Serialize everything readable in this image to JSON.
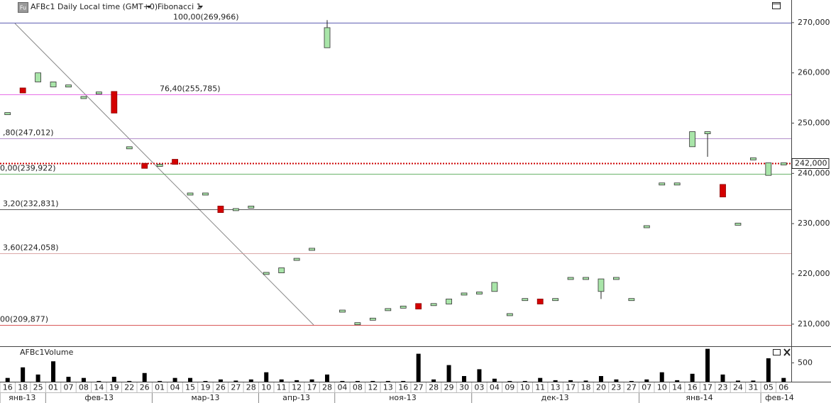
{
  "chart_data": {
    "type": "candlestick",
    "title": "AFBc1 Daily Local time (GMT+0)",
    "indicator": "Fibonacci 1",
    "icon": "Fu",
    "months": [
      {
        "name": "янв-13",
        "days": [
          "16",
          "18",
          "25"
        ]
      },
      {
        "name": "фев-13",
        "days": [
          "01",
          "07",
          "08",
          "14",
          "19",
          "22",
          "26"
        ]
      },
      {
        "name": "мар-13",
        "days": [
          "01",
          "04",
          "15",
          "19",
          "26",
          "27",
          "28"
        ]
      },
      {
        "name": "апр-13",
        "days": [
          "10",
          "11",
          "12",
          "17",
          "28"
        ]
      },
      {
        "name": "ноя-13",
        "days": [
          "04",
          "08",
          "12",
          "13",
          "16",
          "27",
          "28",
          "29",
          "30"
        ]
      },
      {
        "name": "дек-13",
        "days": [
          "03",
          "04",
          "09",
          "10",
          "11",
          "13",
          "17",
          "18",
          "20",
          "23",
          "27"
        ]
      },
      {
        "name": "янв-14",
        "days": [
          "07",
          "10",
          "14",
          "16",
          "17",
          "23",
          "24",
          "31"
        ]
      },
      {
        "name": "фев-14",
        "days": [
          "05",
          "06"
        ]
      }
    ],
    "open": [
      251.8,
      257.0,
      258.2,
      257.2,
      257.3,
      255.1,
      256.0,
      256.3,
      245.1,
      242.0,
      241.6,
      242.8,
      235.9,
      235.9,
      233.5,
      232.8,
      233.3,
      220.1,
      220.2,
      222.9,
      224.9,
      265.0,
      212.6,
      210.1,
      211.0,
      212.9,
      213.4,
      214.1,
      213.9,
      214.0,
      215.8,
      216.1,
      216.5,
      211.9,
      214.9,
      215.0,
      214.9,
      219.1,
      219.1,
      216.5,
      219.1,
      214.9,
      229.4,
      237.9,
      237.9,
      245.3,
      248.0,
      237.8,
      229.9,
      242.9,
      239.6,
      241.9
    ],
    "high": [
      252.1,
      257.0,
      260.0,
      258.2,
      257.6,
      255.3,
      256.2,
      256.3,
      245.3,
      242.0,
      241.8,
      242.8,
      236.1,
      236.1,
      233.5,
      233.0,
      233.5,
      220.3,
      221.2,
      223.1,
      225.1,
      270.5,
      212.8,
      210.3,
      211.2,
      213.1,
      213.6,
      214.1,
      214.1,
      215.0,
      216.2,
      216.4,
      218.3,
      212.1,
      215.1,
      215.0,
      215.1,
      219.3,
      219.3,
      219.0,
      219.3,
      215.1,
      229.6,
      238.1,
      238.1,
      248.3,
      248.3,
      237.8,
      230.1,
      243.1,
      242.1,
      242.1
    ],
    "low": [
      251.8,
      256.0,
      258.2,
      257.2,
      257.3,
      255.1,
      256.0,
      252.0,
      245.1,
      241.0,
      241.6,
      241.8,
      235.9,
      235.9,
      232.2,
      232.8,
      233.3,
      220.1,
      220.2,
      222.9,
      224.9,
      265.0,
      212.6,
      210.1,
      211.0,
      212.9,
      213.4,
      213.0,
      213.9,
      214.0,
      215.8,
      216.1,
      216.5,
      211.9,
      214.9,
      214.0,
      214.9,
      219.1,
      219.1,
      215.0,
      219.1,
      214.9,
      229.4,
      237.9,
      237.9,
      245.3,
      243.3,
      235.3,
      229.9,
      242.9,
      239.6,
      241.9
    ],
    "close": [
      252.1,
      256.0,
      260.0,
      258.2,
      257.6,
      255.3,
      256.2,
      252.0,
      245.3,
      241.0,
      241.8,
      241.8,
      236.1,
      236.1,
      232.2,
      233.0,
      233.5,
      220.3,
      221.2,
      223.1,
      225.1,
      269.0,
      212.8,
      210.3,
      211.2,
      213.1,
      213.6,
      213.0,
      214.1,
      215.0,
      216.2,
      216.4,
      218.3,
      212.1,
      215.1,
      214.0,
      215.1,
      219.3,
      219.3,
      219.0,
      219.3,
      215.1,
      229.6,
      238.1,
      238.1,
      248.3,
      248.3,
      235.3,
      230.1,
      243.1,
      242.1,
      242.1
    ],
    "up_color": "#a9e5a9",
    "down_color": "#d40000",
    "ylim": [
      205.6,
      274.5
    ],
    "yticks": [
      {
        "value": 210,
        "label": "210,000"
      },
      {
        "value": 220,
        "label": "220,000"
      },
      {
        "value": 230,
        "label": "230,000"
      },
      {
        "value": 240,
        "label": "240,000"
      },
      {
        "value": 250,
        "label": "250,000"
      },
      {
        "value": 260,
        "label": "260,000"
      },
      {
        "value": 270,
        "label": "270,000"
      }
    ],
    "last_price": {
      "value": 242,
      "label": "242,000"
    },
    "fibonacci": [
      {
        "label": "100,00(269,966)",
        "value": 269.966,
        "color": "#2b2b9a"
      },
      {
        "label": "76,40(255,785)",
        "value": 255.785,
        "color": "#e040e0"
      },
      {
        "label": ",80(247,012)",
        "value": 247.012,
        "color": "#9a6ab8"
      },
      {
        "label": "0,00(239,922)",
        "value": 239.922,
        "color": "#3a9a3a"
      },
      {
        "label": "3,20(232,831)",
        "value": 232.831,
        "color": "#222222"
      },
      {
        "label": "3,60(224,058)",
        "value": 224.058,
        "color": "#d08a8a"
      },
      {
        "label": "00(209,877)",
        "value": 209.877,
        "color": "#cc2222"
      }
    ],
    "volume": {
      "title": "AFBc1Volume",
      "values": [
        100,
        380,
        190,
        540,
        130,
        100,
        20,
        130,
        20,
        230,
        20,
        100,
        100,
        20,
        60,
        30,
        60,
        250,
        60,
        40,
        60,
        190,
        20,
        20,
        20,
        20,
        20,
        740,
        60,
        440,
        150,
        330,
        80,
        20,
        20,
        100,
        40,
        40,
        30,
        150,
        60,
        20,
        60,
        250,
        40,
        210,
        870,
        190,
        30,
        30,
        620,
        100
      ],
      "ylim": [
        0,
        920
      ],
      "yticks": [
        500
      ],
      "color": "#000000"
    }
  }
}
